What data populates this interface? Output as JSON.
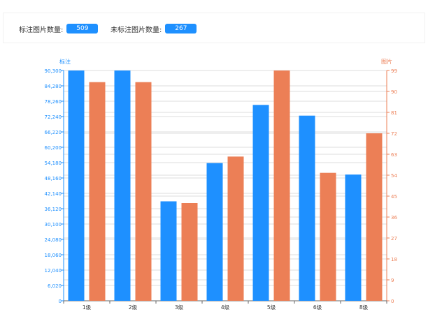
{
  "stats": {
    "annotated_label": "标注图片数量:",
    "annotated_value": "509",
    "unannotated_label": "未标注图片数量:",
    "unannotated_value": "267"
  },
  "colors": {
    "left_series": "#1e90ff",
    "right_series": "#ec7f56",
    "grid": "#dddddd",
    "axis": "#666666"
  },
  "chart_data": {
    "type": "bar",
    "categories": [
      "1级",
      "2级",
      "3级",
      "4级",
      "5级",
      "6级",
      "8级"
    ],
    "series": [
      {
        "axis": "left",
        "values": [
          90300,
          90300,
          39000,
          54000,
          76800,
          72600,
          49500
        ]
      },
      {
        "axis": "right",
        "values": [
          94,
          94,
          42,
          62,
          99,
          55,
          72
        ]
      }
    ],
    "y_left": {
      "label": "标注",
      "range": [
        0,
        90300
      ],
      "ticks": [
        "0",
        "6,020",
        "12,040",
        "18,060",
        "24,080",
        "30,100",
        "36,120",
        "42,140",
        "48,160",
        "54,180",
        "60,200",
        "66,220",
        "72,240",
        "78,260",
        "84,280",
        "90,300"
      ]
    },
    "y_right": {
      "label": "图片",
      "range": [
        0,
        99
      ],
      "ticks": [
        "0",
        "9",
        "18",
        "27",
        "36",
        "45",
        "54",
        "63",
        "72",
        "81",
        "90",
        "99"
      ]
    },
    "grid": true
  }
}
